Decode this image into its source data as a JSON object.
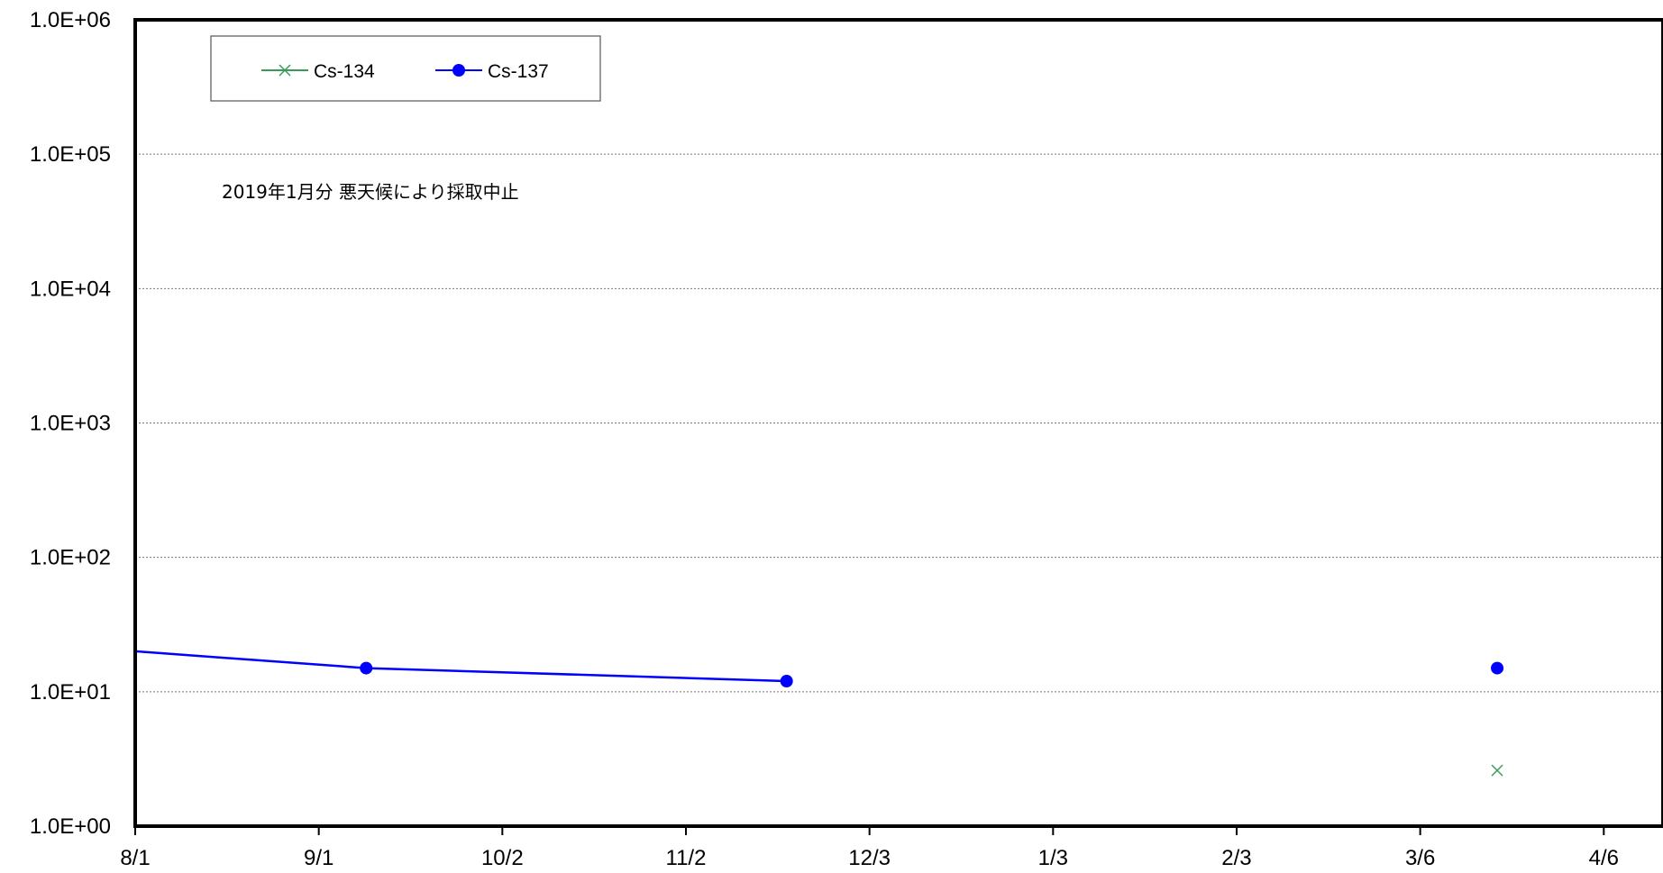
{
  "chart_data": {
    "type": "line",
    "title": "",
    "xlabel": "",
    "ylabel": "",
    "y_scale": "log",
    "ylim": [
      1,
      1000000
    ],
    "y_ticks": [
      {
        "value": 1,
        "label": "1.0E+00"
      },
      {
        "value": 10,
        "label": "1.0E+01"
      },
      {
        "value": 100,
        "label": "1.0E+02"
      },
      {
        "value": 1000,
        "label": "1.0E+03"
      },
      {
        "value": 10000,
        "label": "1.0E+04"
      },
      {
        "value": 100000,
        "label": "1.0E+05"
      },
      {
        "value": 1000000,
        "label": "1.0E+06"
      }
    ],
    "xlim": [
      "2018-08-01",
      "2019-04-16"
    ],
    "x_ticks": [
      {
        "date": "2018-08-01",
        "label": "8/1"
      },
      {
        "date": "2018-09-01",
        "label": "9/1"
      },
      {
        "date": "2018-10-02",
        "label": "10/2"
      },
      {
        "date": "2018-11-02",
        "label": "11/2"
      },
      {
        "date": "2018-12-03",
        "label": "12/3"
      },
      {
        "date": "2019-01-03",
        "label": "1/3"
      },
      {
        "date": "2019-02-03",
        "label": "2/3"
      },
      {
        "date": "2019-03-06",
        "label": "3/6"
      },
      {
        "date": "2019-04-06",
        "label": "4/6"
      }
    ],
    "grid": "horizontal dotted",
    "legend_position": "top-left",
    "series": [
      {
        "name": "Cs-134",
        "color": "#3a9a5a",
        "marker": "x",
        "points": [
          {
            "x": "2019-03-19",
            "y": 2.6
          }
        ]
      },
      {
        "name": "Cs-137",
        "color": "#0000ff",
        "marker": "circle",
        "connected_segments": [
          [
            "2018-08-01",
            "2018-11-19"
          ]
        ],
        "points": [
          {
            "x": "2018-08-01",
            "y": 20,
            "marker": false
          },
          {
            "x": "2018-09-09",
            "y": 15
          },
          {
            "x": "2018-11-19",
            "y": 12
          },
          {
            "x": "2019-03-19",
            "y": 15
          }
        ]
      }
    ],
    "annotations": [
      {
        "text": "2019年1月分 悪天候により採取中止"
      }
    ]
  }
}
